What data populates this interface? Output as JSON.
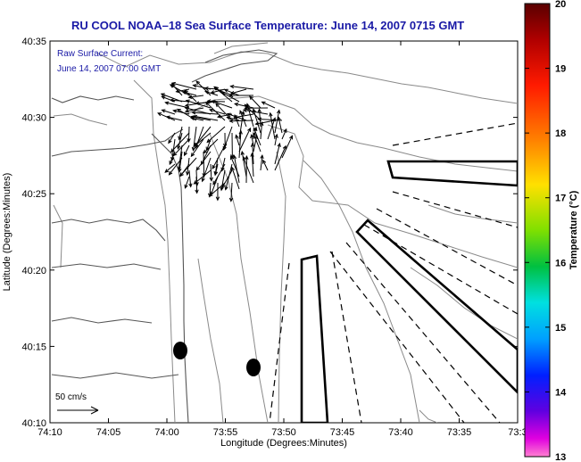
{
  "title": "RU COOL   NOAA–18  Sea Surface Temperature:  June 14, 2007 0715 GMT",
  "annotation": {
    "line1": "Raw Surface Current:",
    "line2": "June 14, 2007 07:00 GMT"
  },
  "axes": {
    "xlabel": "Longitude (Degrees:Minutes)",
    "ylabel": "Latitude (Degrees:Minutes)",
    "xticks": [
      "74:10",
      "74:05",
      "74:00",
      "73:55",
      "73:50",
      "73:45",
      "73:40",
      "73:35",
      "73:3"
    ],
    "yticks": [
      "40:35",
      "40:30",
      "40:25",
      "40:20",
      "40:15",
      "40:10"
    ]
  },
  "colorbar": {
    "label": "Temperature (°C)",
    "ticks": [
      "20",
      "19",
      "18",
      "17",
      "16",
      "15",
      "14",
      "13"
    ],
    "min": 13,
    "max": 20
  },
  "scale_bar": {
    "label": "50 cm/s"
  },
  "colors": {
    "title": "#1a1aa6",
    "contour": "#888888",
    "coast": "#555555",
    "vectors": "#000000"
  }
}
